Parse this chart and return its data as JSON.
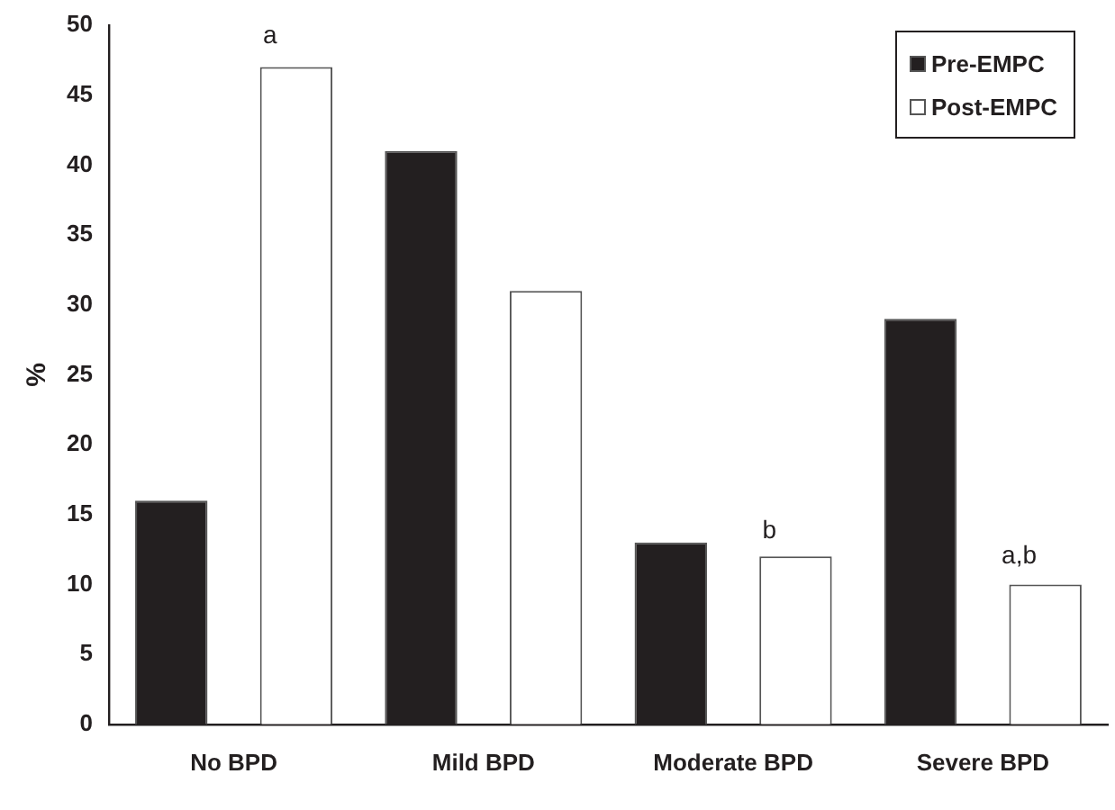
{
  "chart_data": {
    "type": "bar",
    "ylabel": "%",
    "categories": [
      "No BPD",
      "Mild BPD",
      "Moderate BPD",
      "Severe BPD"
    ],
    "series": [
      {
        "name": "Pre-EMPC",
        "color": "#231f20",
        "values": [
          16,
          41,
          13,
          29
        ]
      },
      {
        "name": "Post-EMPC",
        "color": "#ffffff",
        "values": [
          47,
          31,
          12,
          10
        ]
      }
    ],
    "ylim": [
      0,
      50
    ],
    "yticks": [
      0,
      5,
      10,
      15,
      20,
      25,
      30,
      35,
      40,
      45,
      50
    ],
    "grid": false,
    "legend": "top right",
    "annotations": [
      "a",
      "b",
      "a,b"
    ]
  }
}
